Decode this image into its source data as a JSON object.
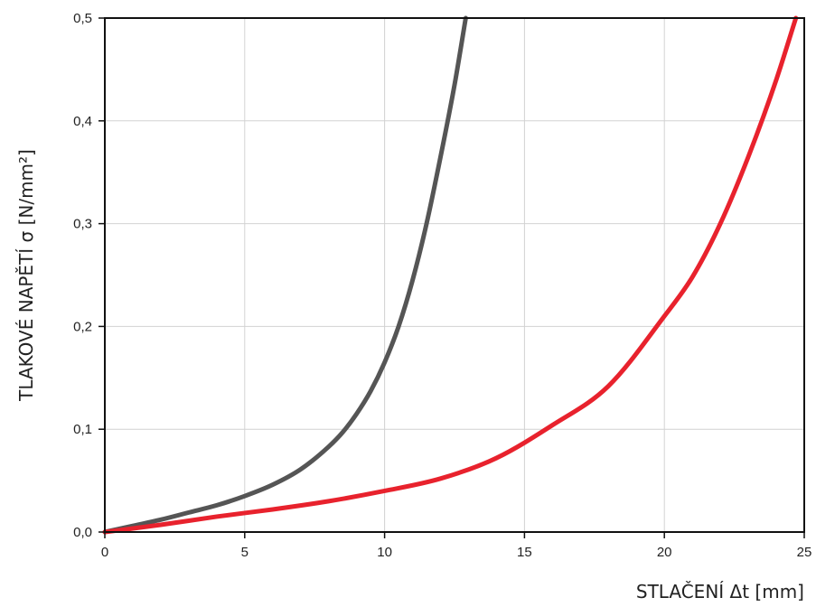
{
  "chart_data": {
    "type": "line",
    "title": "",
    "xlabel": "STLAČENÍ Δt [mm]",
    "ylabel": "TLAKOVÉ NAPĚTÍ σ [N/mm²]",
    "xlim": [
      0,
      25
    ],
    "ylim": [
      0,
      0.5
    ],
    "x_ticks": [
      "0",
      "5",
      "10",
      "15",
      "20",
      "25"
    ],
    "y_ticks": [
      "0,0",
      "0,1",
      "0,2",
      "0,3",
      "0,4",
      "0,5"
    ],
    "x_tick_values": [
      0,
      5,
      10,
      15,
      20,
      25
    ],
    "y_tick_values": [
      0,
      0.1,
      0.2,
      0.3,
      0.4,
      0.5
    ],
    "grid": true,
    "legend": "none",
    "series": [
      {
        "color": "#555555",
        "x": [
          0,
          1,
          2,
          3,
          4,
          5,
          6,
          7,
          8,
          8.5,
          9,
          9.5,
          10,
          10.5,
          11,
          11.5,
          12,
          12.5,
          12.9
        ],
        "y": [
          0,
          0.006,
          0.012,
          0.019,
          0.026,
          0.035,
          0.046,
          0.061,
          0.083,
          0.097,
          0.115,
          0.137,
          0.165,
          0.2,
          0.245,
          0.3,
          0.365,
          0.435,
          0.5
        ]
      },
      {
        "color": "#e8222d",
        "x": [
          0,
          2,
          4,
          6,
          8,
          10,
          12,
          14,
          16,
          18,
          20,
          21,
          22,
          23,
          24,
          24.7
        ],
        "y": [
          0,
          0.007,
          0.015,
          0.022,
          0.03,
          0.04,
          0.052,
          0.072,
          0.104,
          0.142,
          0.21,
          0.248,
          0.3,
          0.365,
          0.44,
          0.5
        ]
      }
    ]
  }
}
